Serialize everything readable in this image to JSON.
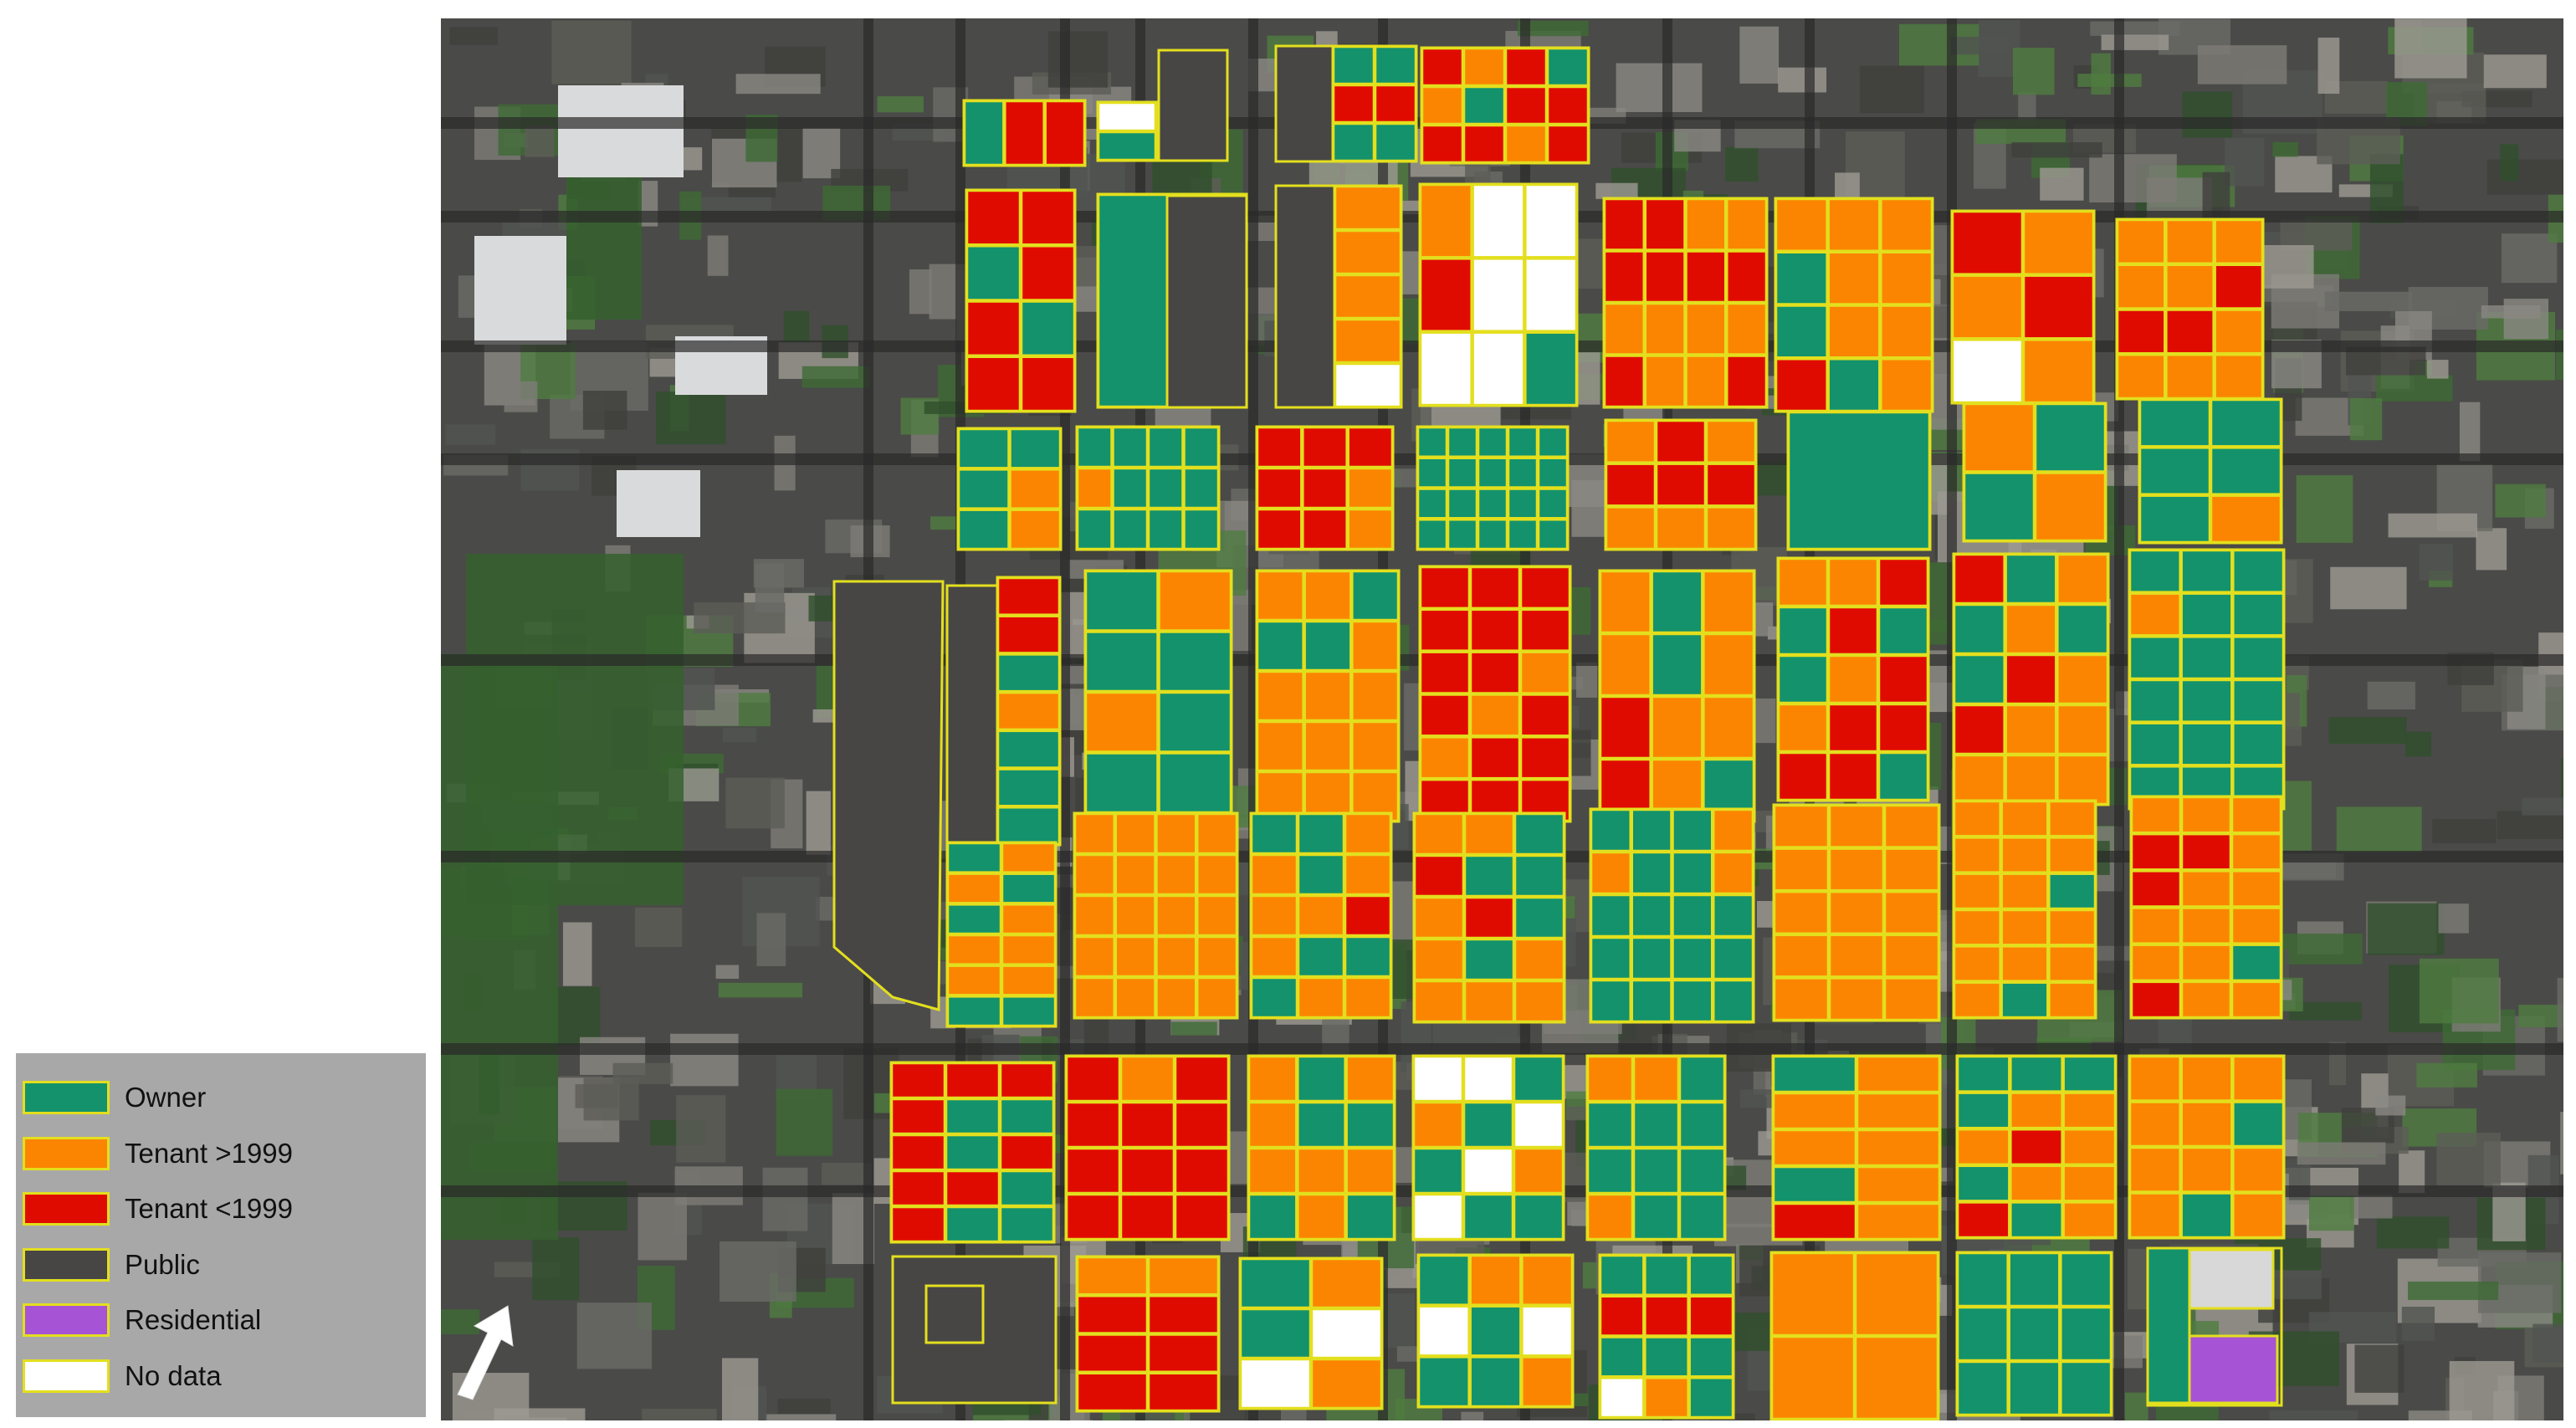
{
  "map": {
    "type": "land-tenure-map",
    "basemap": "satellite imagery of urban grid",
    "colors": {
      "owner": "#13926c",
      "tenant_after_1999": "#fb8500",
      "tenant_before_1999": "#e00b00",
      "public": "#474645",
      "residential": "#a753d6",
      "no_data": "#ffffff",
      "outline": "#e3df1e"
    },
    "legend": [
      {
        "label": "Owner",
        "color": "#13926c"
      },
      {
        "label": "Tenant >1999",
        "color": "#fb8500"
      },
      {
        "label": "Tenant <1999",
        "color": "#e00b00"
      },
      {
        "label": "Public",
        "color": "#474645"
      },
      {
        "label": "Residential",
        "color": "#a753d6"
      },
      {
        "label": "No data",
        "color": "#ffffff"
      }
    ],
    "north_arrow_icon": "north-arrow-icon"
  }
}
